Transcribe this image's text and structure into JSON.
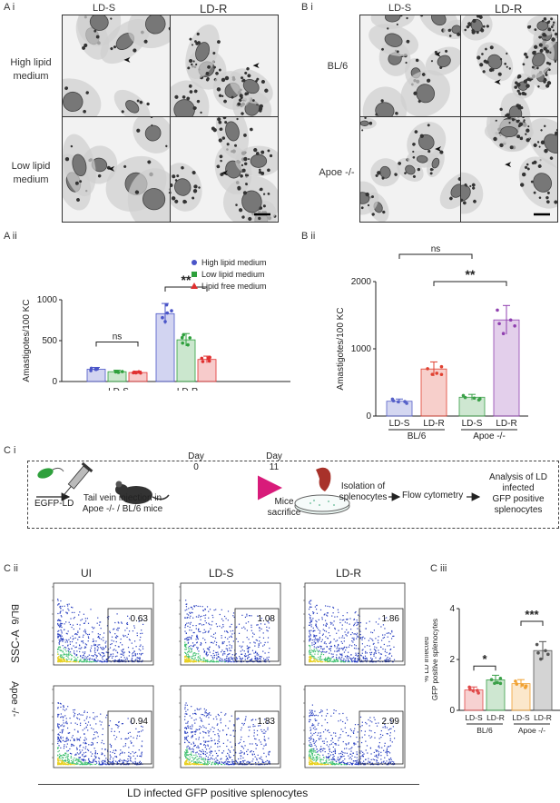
{
  "panel_ai": {
    "label": "A i",
    "col_headers": [
      "LD-S",
      "LD-R"
    ],
    "row_labels": [
      "High lipid\nmedium",
      "Low lipid\nmedium"
    ]
  },
  "panel_bi": {
    "label": "B i",
    "col_headers": [
      "LD-S",
      "LD-R"
    ],
    "row_labels": [
      "BL/6",
      "Apoe -/-"
    ]
  },
  "panel_aii": {
    "label": "A ii"
  },
  "panel_bii": {
    "label": "B ii"
  },
  "panel_ci": {
    "label": "C i",
    "steps": {
      "egfp": "EGFP-LD",
      "injection": "Tail vein injection in\nApoe -/- / BL/6 mice",
      "day0": "Day\n0",
      "day11": "Day\n11",
      "sacrifice": "Mice\nsacrifice",
      "isolation": "Isolation of\nsplenocytes",
      "flow": "Flow cytometry",
      "analysis": "Analysis of LD\ninfected\nGFP positive\nsplenocytes"
    }
  },
  "panel_cii": {
    "label": "C ii",
    "col_headers": [
      "UI",
      "LD-S",
      "LD-R"
    ],
    "row_labels": [
      "BL/6",
      "Apoe -/-"
    ],
    "y_axis": "SSC-A",
    "x_axis": "LD infected GFP positive splenocytes",
    "gate_values": [
      [
        "0.63",
        "1.08",
        "1.86"
      ],
      [
        "0.94",
        "1.83",
        "2.99"
      ]
    ]
  },
  "panel_ciii": {
    "label": "C iii"
  },
  "chart_data": [
    {
      "id": "A ii",
      "type": "bar",
      "categories": [
        "LD-S",
        "LD-R"
      ],
      "series": [
        {
          "name": "High lipid medium",
          "color": "#4a55c8",
          "values": [
            150,
            830
          ]
        },
        {
          "name": "Low lipid medium",
          "color": "#2ea03c",
          "values": [
            120,
            510
          ]
        },
        {
          "name": "Lipid free medium",
          "color": "#e03030",
          "values": [
            110,
            270
          ]
        }
      ],
      "ylabel": "Amastigotes/100 KC",
      "ylim": [
        0,
        1000
      ],
      "yticks": [
        0,
        500,
        1000
      ],
      "legend": "top-right",
      "annotations": [
        {
          "text": "ns",
          "between": [
            "LD-S High lipid medium",
            "LD-S Lipid free medium"
          ]
        },
        {
          "text": "**",
          "between": [
            "LD-R High lipid medium",
            "LD-R Lipid free medium"
          ]
        }
      ]
    },
    {
      "id": "B ii",
      "type": "bar",
      "categories": [
        "LD-S",
        "LD-R",
        "LD-S",
        "LD-R"
      ],
      "groups": [
        "BL/6",
        "Apoe -/-"
      ],
      "colors": [
        "#5560c8",
        "#e04030",
        "#3aa048",
        "#9040b0"
      ],
      "values": [
        220,
        700,
        280,
        1430
      ],
      "ylabel": "Amastigotes/100 KC",
      "ylim": [
        0,
        2000
      ],
      "yticks": [
        0,
        1000,
        2000
      ],
      "annotations": [
        {
          "text": "ns",
          "between": [
            "BL/6 LD-S",
            "Apoe -/- LD-S"
          ]
        },
        {
          "text": "**",
          "between": [
            "BL/6 LD-R",
            "Apoe -/- LD-R"
          ]
        }
      ]
    },
    {
      "id": "C iii",
      "type": "bar",
      "categories": [
        "LD-S",
        "LD-R",
        "LD-S",
        "LD-R"
      ],
      "groups": [
        "BL/6",
        "Apoe -/-"
      ],
      "colors": [
        "#e04848",
        "#3aa048",
        "#f0a030",
        "#555555"
      ],
      "values": [
        0.8,
        1.2,
        1.05,
        2.35
      ],
      "ylabel": "% LD infected\nGFP positive splenocytes",
      "ylim": [
        0,
        4
      ],
      "yticks": [
        0,
        2,
        4
      ],
      "annotations": [
        {
          "text": "*",
          "between": [
            "BL/6 LD-S",
            "BL/6 LD-R"
          ]
        },
        {
          "text": "***",
          "between": [
            "Apoe -/- LD-S",
            "Apoe -/- LD-R"
          ]
        }
      ]
    }
  ]
}
